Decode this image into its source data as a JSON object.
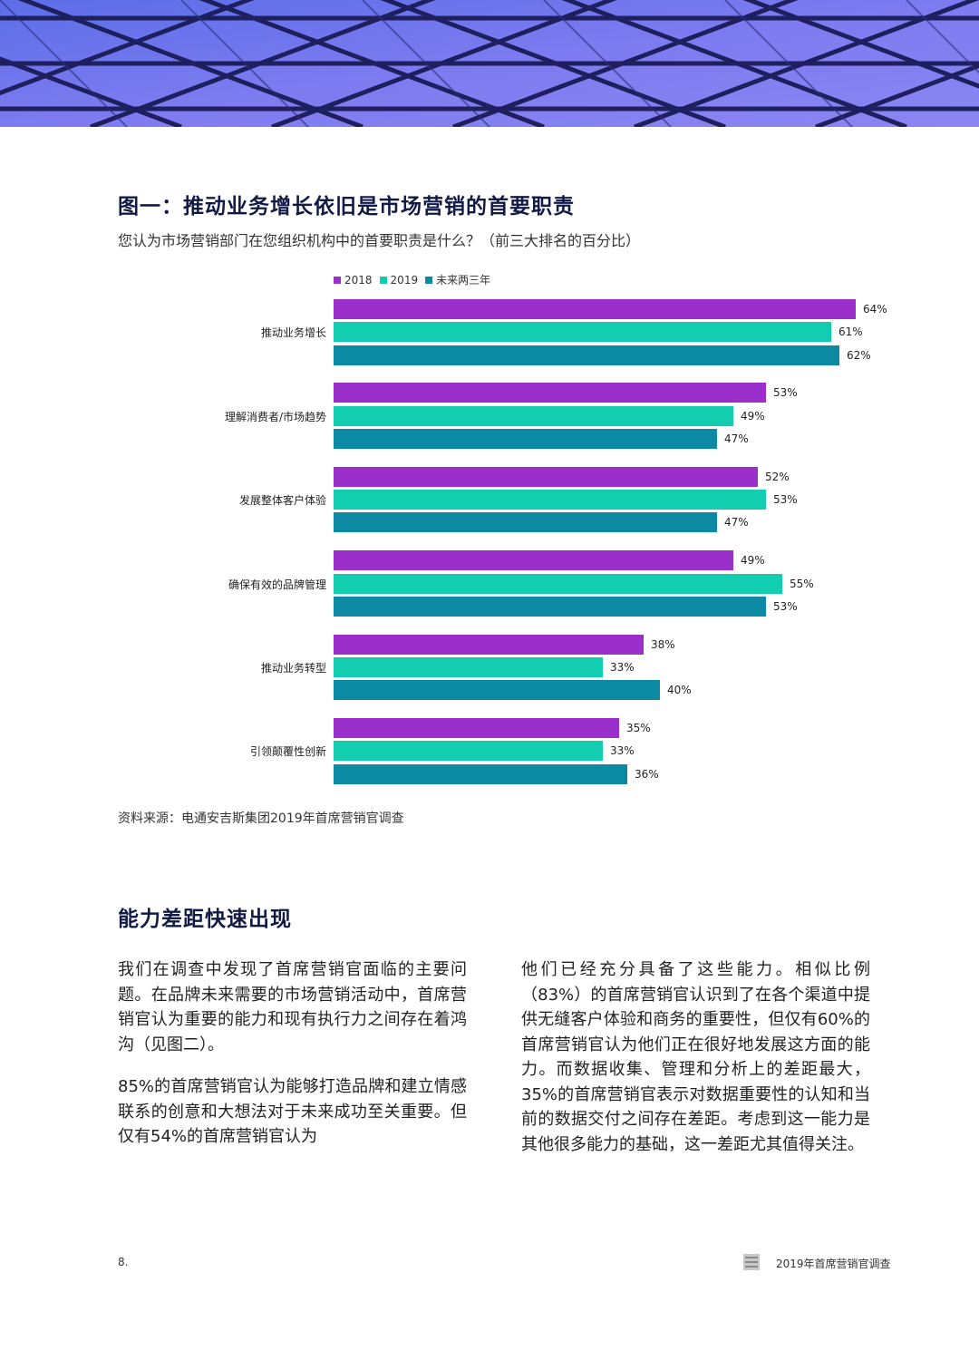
{
  "figure": {
    "title": "图一：推动业务增长依旧是市场营销的首要职责",
    "subtitle": "您认为市场营销部门在您组织机构中的首要职责是什么？（前三大排名的百分比）",
    "source": "资料来源：电通安吉斯集团2019年首席营销官调查"
  },
  "chart_data": {
    "type": "bar",
    "orientation": "horizontal",
    "title": "图一：推动业务增长依旧是市场营销的首要职责",
    "categories": [
      "推动业务增长",
      "理解消费者/市场趋势",
      "发展整体客户体验",
      "确保有效的品牌管理",
      "推动业务转型",
      "引领颠覆性创新"
    ],
    "series": [
      {
        "name": "2018",
        "color": "#9b2fcb",
        "values": [
          64,
          53,
          52,
          49,
          38,
          35
        ]
      },
      {
        "name": "2019",
        "color": "#12cdb0",
        "values": [
          61,
          49,
          53,
          55,
          33,
          33
        ]
      },
      {
        "name": "未来两三年",
        "color": "#0d8aa3",
        "values": [
          62,
          47,
          47,
          53,
          40,
          36
        ]
      }
    ],
    "value_suffix": "%",
    "xlim": [
      0,
      100
    ],
    "legend": "top-left",
    "grid": false
  },
  "section": {
    "title": "能力差距快速出现",
    "left_paragraphs": [
      "我们在调查中发现了首席营销官面临的主要问题。在品牌未来需要的市场营销活动中，首席营销官认为重要的能力和现有执行力之间存在着鸿沟（见图二）。",
      "85%的首席营销官认为能够打造品牌和建立情感联系的创意和大想法对于未来成功至关重要。但仅有54%的首席营销官认为"
    ],
    "right_paragraphs": [
      "他们已经充分具备了这些能力。相似比例（83%）的首席营销官认识到了在各个渠道中提供无缝客户体验和商务的重要性，但仅有60%的首席营销官认为他们正在很好地发展这方面的能力。而数据收集、管理和分析上的差距最大，35%的首席营销官表示对数据重要性的认知和当前的数据交付之间存在差距。考虑到这一能力是其他很多能力的基础，这一差距尤其值得关注。"
    ]
  },
  "footer": {
    "page_number": "8.",
    "report_title": "2019年首席营销官调查"
  },
  "colors": {
    "heading": "#121a46",
    "hero_bg": "#6f6fe6",
    "hero_lines": "#1d1f5e"
  }
}
